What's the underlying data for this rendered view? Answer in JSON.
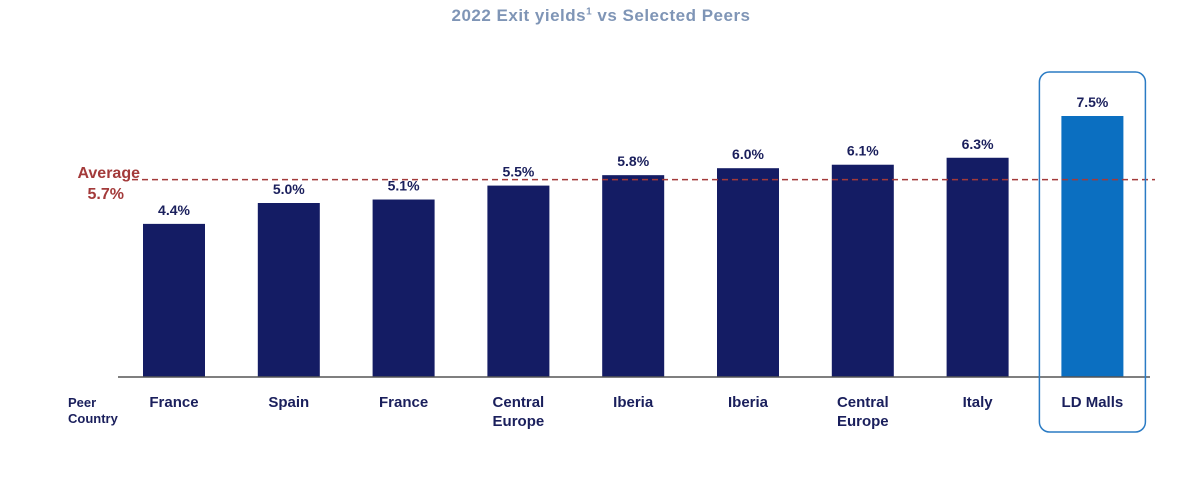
{
  "title": {
    "main": "2022 Exit yields",
    "footnote": "1",
    "rest": " vs Selected Peers"
  },
  "average": {
    "label": "Average",
    "value_label": "5.7%",
    "value": 5.7
  },
  "row_label": {
    "line1": "Peer",
    "line2": "Country"
  },
  "colors": {
    "title": "#7f95b6",
    "bar": "#141c64",
    "highlight_bar": "#0b6fc1",
    "average_line": "#a33a3a",
    "text": "#1a1f5c",
    "highlight_box": "#2a7bc4"
  },
  "chart_data": {
    "type": "bar",
    "title": "2022 Exit yields¹ vs Selected Peers",
    "categories": [
      [
        "France"
      ],
      [
        "Spain"
      ],
      [
        "France"
      ],
      [
        "Central",
        "Europe"
      ],
      [
        "Iberia"
      ],
      [
        "Iberia"
      ],
      [
        "Central",
        "Europe"
      ],
      [
        "Italy"
      ],
      [
        "LD Malls"
      ]
    ],
    "values": [
      4.4,
      5.0,
      5.1,
      5.5,
      5.8,
      6.0,
      6.1,
      6.3,
      7.5
    ],
    "data_labels": [
      "4.4%",
      "5.0%",
      "5.1%",
      "5.5%",
      "5.8%",
      "6.0%",
      "6.1%",
      "6.3%",
      "7.5%"
    ],
    "highlight_index": 8,
    "reference_line": {
      "label": "Average 5.7%",
      "value": 5.7
    },
    "ylim": [
      0,
      7.5
    ],
    "grid": false,
    "legend": "none"
  }
}
